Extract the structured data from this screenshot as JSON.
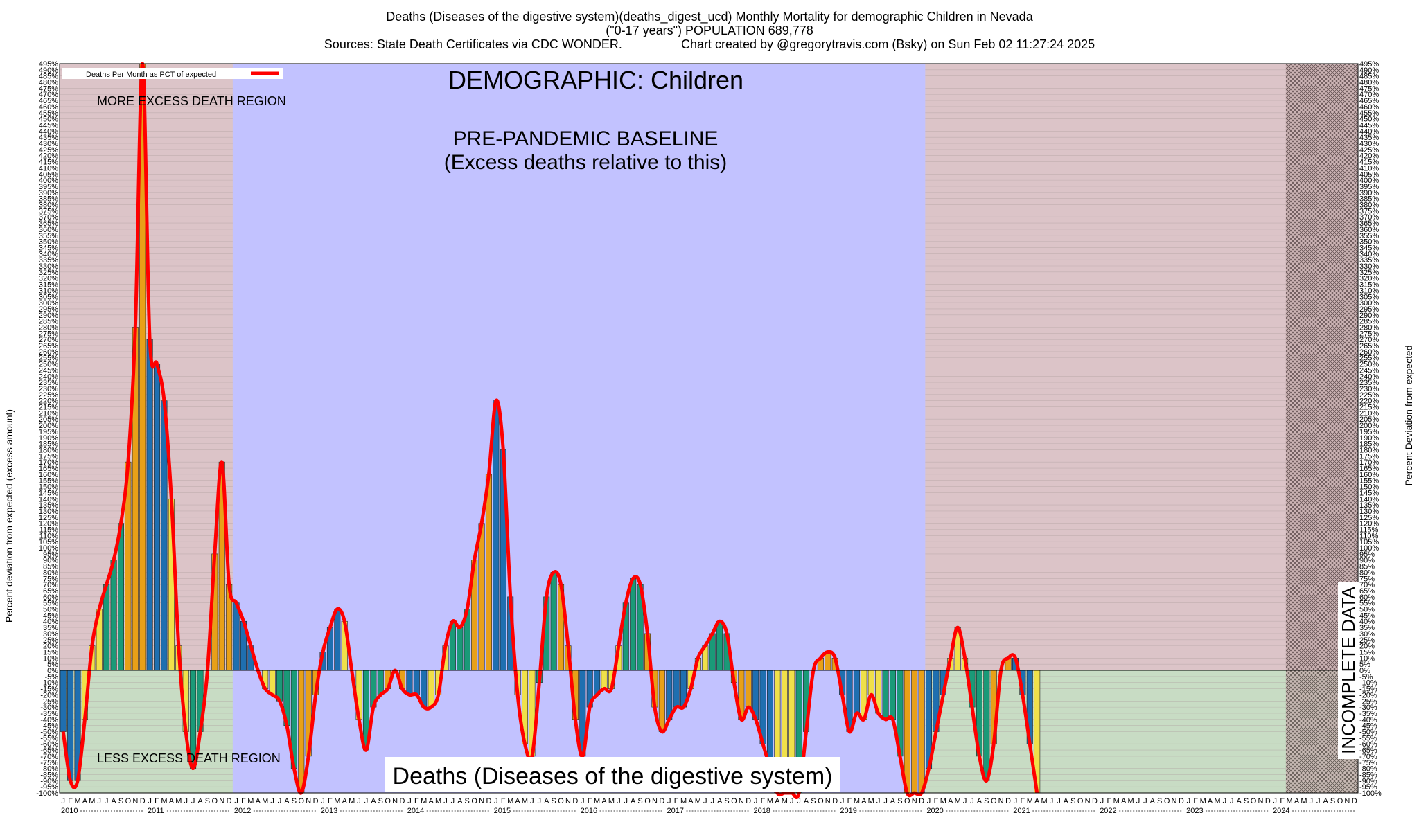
{
  "header": {
    "line1": "Deaths (Diseases of the digestive system)(deaths_digest_ucd) Monthly Mortality for demographic Children in Nevada",
    "line2": "(\"0-17 years\") POPULATION 689,778",
    "line3": "Sources: State Death Certificates via CDC WONDER.                 Chart created by @gregorytravis.com (Bsky) on Sun Feb 02 11:27:24 2025"
  },
  "annotations": {
    "demographic": "DEMOGRAPHIC: Children",
    "baseline_line1": "PRE-PANDEMIC BASELINE",
    "baseline_line2": "(Excess deaths relative to this)",
    "more_excess": "MORE EXCESS DEATH REGION",
    "less_excess": "LESS EXCESS DEATH REGION",
    "cause_label": "Deaths (Diseases of the digestive system)",
    "incomplete": "INCOMPLETE DATA"
  },
  "colors": {
    "background_pre_post": "#dcc4c8",
    "baseline_band": "#c2c2ff",
    "less_region": "#c8dcc4",
    "line": "#ff0000",
    "bar_blue": "#1f6fb0",
    "bar_yellow": "#f0e04a",
    "bar_green": "#1a9a78",
    "bar_orange": "#e8a018"
  },
  "chart_data": {
    "type": "bar",
    "ylabel_left": "Percent deviation from expected (excess amount)",
    "ylabel_right": "Percent Deviation from expected",
    "legend": "Deaths Per Month as PCT of expected",
    "ylim": [
      -100,
      495
    ],
    "ytick_step": 5,
    "month_letters": [
      "J",
      "F",
      "M",
      "A",
      "M",
      "J",
      "J",
      "A",
      "S",
      "O",
      "N",
      "D"
    ],
    "years": [
      "2010",
      "2011",
      "2012",
      "2013",
      "2014",
      "2015",
      "2016",
      "2017",
      "2018",
      "2019",
      "2020",
      "2021",
      "2022",
      "2023",
      "2024"
    ],
    "baseline_years": [
      "2012",
      "2019"
    ],
    "incomplete_from": "2024-03",
    "values": [
      -50,
      -90,
      -90,
      -40,
      20,
      50,
      70,
      90,
      120,
      170,
      280,
      495,
      270,
      250,
      220,
      140,
      20,
      -50,
      -80,
      -50,
      0,
      95,
      170,
      70,
      55,
      40,
      20,
      0,
      -15,
      -20,
      -25,
      -45,
      -80,
      -100,
      -70,
      -20,
      15,
      35,
      50,
      40,
      0,
      -40,
      -65,
      -30,
      -20,
      -15,
      0,
      -15,
      -20,
      -20,
      -30,
      -30,
      -20,
      20,
      40,
      35,
      50,
      90,
      120,
      160,
      220,
      180,
      60,
      -20,
      -60,
      -70,
      -10,
      60,
      80,
      70,
      20,
      -40,
      -70,
      -30,
      -20,
      -15,
      -15,
      20,
      55,
      75,
      70,
      30,
      -30,
      -50,
      -40,
      -30,
      -30,
      -15,
      10,
      20,
      30,
      40,
      30,
      -10,
      -40,
      -30,
      -40,
      -60,
      -80,
      -100,
      -100,
      -100,
      -100,
      -50,
      0,
      10,
      15,
      10,
      -20,
      -50,
      -35,
      -40,
      -20,
      -35,
      -40,
      -40,
      -70,
      -100,
      -100,
      -100,
      -80,
      -50,
      -20,
      10,
      35,
      10,
      -30,
      -70,
      -90,
      -60,
      0,
      10,
      10,
      -20,
      -60,
      -100
    ]
  }
}
